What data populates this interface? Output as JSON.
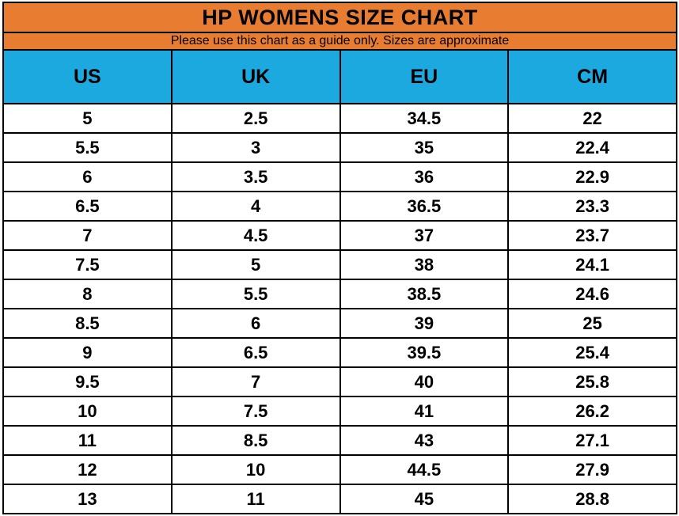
{
  "chart_data": {
    "type": "table",
    "title": "HP WOMENS SIZE CHART",
    "subtitle": "Please use this chart as a guide only. Sizes are approximate",
    "columns": [
      "US",
      "UK",
      "EU",
      "CM"
    ],
    "rows": [
      [
        "5",
        "2.5",
        "34.5",
        "22"
      ],
      [
        "5.5",
        "3",
        "35",
        "22.4"
      ],
      [
        "6",
        "3.5",
        "36",
        "22.9"
      ],
      [
        "6.5",
        "4",
        "36.5",
        "23.3"
      ],
      [
        "7",
        "4.5",
        "37",
        "23.7"
      ],
      [
        "7.5",
        "5",
        "38",
        "24.1"
      ],
      [
        "8",
        "5.5",
        "38.5",
        "24.6"
      ],
      [
        "8.5",
        "6",
        "39",
        "25"
      ],
      [
        "9",
        "6.5",
        "39.5",
        "25.4"
      ],
      [
        "9.5",
        "7",
        "40",
        "25.8"
      ],
      [
        "10",
        "7.5",
        "41",
        "26.2"
      ],
      [
        "11",
        "8.5",
        "43",
        "27.1"
      ],
      [
        "12",
        "10",
        "44.5",
        "27.9"
      ],
      [
        "13",
        "11",
        "45",
        "28.8"
      ]
    ],
    "layout": {
      "grid": true,
      "borders": "black 2px, all cells",
      "alignment": "center"
    }
  },
  "colors": {
    "title_background": "#E87D31",
    "subtitle_background": "#E87D31",
    "column_header_background": "#1CA9E0",
    "row_background": "#FFFFFF",
    "border": "#000000",
    "text": "#000000"
  }
}
